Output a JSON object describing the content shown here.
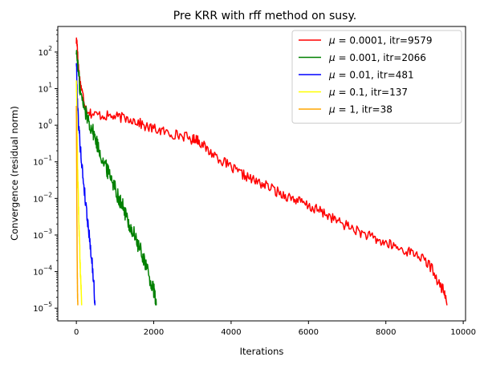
{
  "chart_data": {
    "type": "line",
    "title": "Pre KRR with rff method on susy.",
    "xlabel": "Iterations",
    "ylabel": "Convergence (residual norm)",
    "xscale": "linear",
    "yscale": "log",
    "xlim": [
      -480,
      10060
    ],
    "ylim": [
      4.5e-06,
      500
    ],
    "xticks": [
      0,
      2000,
      4000,
      6000,
      8000,
      10000
    ],
    "xtick_labels": [
      "0",
      "2000",
      "4000",
      "6000",
      "8000",
      "10000"
    ],
    "yticks": [
      1e-05,
      0.0001,
      0.001,
      0.01,
      0.1,
      1,
      10,
      100
    ],
    "ytick_labels": [
      {
        "base": "10",
        "exp": "−5"
      },
      {
        "base": "10",
        "exp": "−4"
      },
      {
        "base": "10",
        "exp": "−3"
      },
      {
        "base": "10",
        "exp": "−2"
      },
      {
        "base": "10",
        "exp": "−1"
      },
      {
        "base": "10",
        "exp": "0"
      },
      {
        "base": "10",
        "exp": "1"
      },
      {
        "base": "10",
        "exp": "2"
      }
    ],
    "grid": false,
    "legend_position": "top-right",
    "series": [
      {
        "name": "μ = 0.0001, itr=9579",
        "mu": "0.0001",
        "itr": "9579",
        "color": "#ff0000",
        "x": [
          0,
          20,
          40,
          80,
          150,
          250,
          400,
          600,
          800,
          1000,
          1200,
          1400,
          1600,
          1800,
          2000,
          2200,
          2400,
          2600,
          2800,
          3000,
          3100,
          3200,
          3400,
          3600,
          3800,
          4000,
          4200,
          4400,
          4600,
          4800,
          5000,
          5200,
          5400,
          5600,
          5800,
          6000,
          6200,
          6400,
          6600,
          6800,
          7000,
          7200,
          7400,
          7600,
          7800,
          8000,
          8200,
          8400,
          8600,
          8800,
          9000,
          9200,
          9400,
          9500,
          9579
        ],
        "y": [
          200,
          180,
          60,
          20,
          8,
          3,
          2.0,
          1.9,
          1.8,
          1.7,
          1.6,
          1.5,
          1.2,
          0.9,
          0.8,
          0.7,
          0.6,
          0.55,
          0.5,
          0.4,
          0.45,
          0.35,
          0.2,
          0.15,
          0.1,
          0.07,
          0.05,
          0.04,
          0.03,
          0.025,
          0.02,
          0.015,
          0.012,
          0.01,
          0.008,
          0.006,
          0.005,
          0.004,
          0.003,
          0.0022,
          0.0018,
          0.0014,
          0.0011,
          0.0009,
          0.0007,
          0.0006,
          0.0005,
          0.0004,
          0.00035,
          0.0003,
          0.0002,
          0.00012,
          4e-05,
          3e-05,
          1.2e-05
        ]
      },
      {
        "name": "μ = 0.001, itr=2066",
        "mu": "0.001",
        "itr": "2066",
        "color": "#008000",
        "x": [
          0,
          50,
          100,
          200,
          300,
          400,
          500,
          600,
          700,
          800,
          900,
          1000,
          1100,
          1200,
          1300,
          1400,
          1500,
          1600,
          1700,
          1800,
          1900,
          2000,
          2066
        ],
        "y": [
          110,
          30,
          8,
          3,
          1.5,
          0.8,
          0.4,
          0.2,
          0.1,
          0.06,
          0.04,
          0.02,
          0.01,
          0.006,
          0.003,
          0.0015,
          0.001,
          0.0005,
          0.0003,
          0.00015,
          6e-05,
          3e-05,
          1.2e-05
        ]
      },
      {
        "name": "μ = 0.01, itr=481",
        "mu": "0.01",
        "itr": "481",
        "color": "#0000ff",
        "x": [
          0,
          20,
          50,
          80,
          120,
          160,
          200,
          250,
          300,
          350,
          400,
          450,
          481
        ],
        "y": [
          60,
          8,
          1.5,
          0.5,
          0.15,
          0.05,
          0.02,
          0.006,
          0.002,
          0.0007,
          0.0002,
          5e-05,
          1.2e-05
        ]
      },
      {
        "name": "μ = 0.1, itr=137",
        "mu": "0.1",
        "itr": "137",
        "color": "#ffff00",
        "x": [
          0,
          10,
          20,
          30,
          45,
          60,
          75,
          90,
          105,
          120,
          137
        ],
        "y": [
          20,
          3,
          0.6,
          0.1,
          0.02,
          0.004,
          0.001,
          0.0003,
          0.0001,
          4e-05,
          1.2e-05
        ]
      },
      {
        "name": "μ = 1, itr=38",
        "mu": "1",
        "itr": "38",
        "color": "#ffa500",
        "x": [
          0,
          5,
          10,
          15,
          20,
          25,
          30,
          38
        ],
        "y": [
          4,
          0.3,
          0.02,
          0.002,
          0.0003,
          8e-05,
          3e-05,
          1.2e-05
        ]
      }
    ]
  }
}
